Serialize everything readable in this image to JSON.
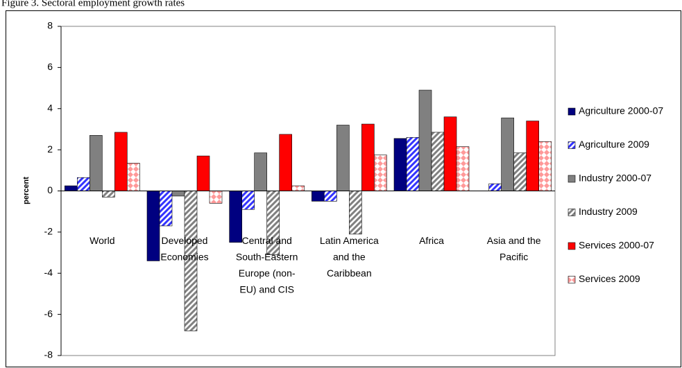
{
  "chart_data": {
    "type": "bar",
    "title": "Figure 3. Sectoral employment growth rates",
    "y_label": "percent",
    "categories": [
      "World",
      "Developed\nEconomies",
      "Central and\nSouth-Eastern\nEurope (non-\nEU) and CIS",
      "Latin America\nand the\nCaribbean",
      "Africa",
      "Asia and the\nPacific"
    ],
    "series": [
      {
        "name": "Agriculture 2000-07",
        "color": "#000080",
        "pattern": "solid",
        "values": [
          0.25,
          -3.4,
          -2.5,
          -0.5,
          2.55,
          0
        ]
      },
      {
        "name": "Agriculture 2009",
        "color": "#3333ff",
        "pattern": "stripes",
        "values": [
          0.65,
          -1.7,
          -0.9,
          -0.5,
          2.6,
          0.35
        ]
      },
      {
        "name": "Industry 2000-07",
        "color": "#808080",
        "pattern": "solid",
        "values": [
          2.7,
          -0.25,
          1.85,
          3.2,
          4.9,
          3.55
        ]
      },
      {
        "name": "Industry 2009",
        "color": "#808080",
        "pattern": "stripes",
        "values": [
          -0.3,
          -6.8,
          -3.1,
          -2.1,
          2.85,
          1.85
        ]
      },
      {
        "name": "Services 2000-07",
        "color": "#ff0000",
        "pattern": "solid",
        "values": [
          2.85,
          1.7,
          2.75,
          3.25,
          3.6,
          3.4
        ]
      },
      {
        "name": "Services 2009",
        "color": "#ff9999",
        "pattern": "diamonds",
        "values": [
          1.35,
          -0.6,
          0.25,
          1.75,
          2.15,
          2.4
        ]
      }
    ],
    "ylim": [
      -8,
      8
    ],
    "yticks": [
      -8,
      -6,
      -4,
      -2,
      0,
      2,
      4,
      6,
      8
    ],
    "legend": "right"
  }
}
